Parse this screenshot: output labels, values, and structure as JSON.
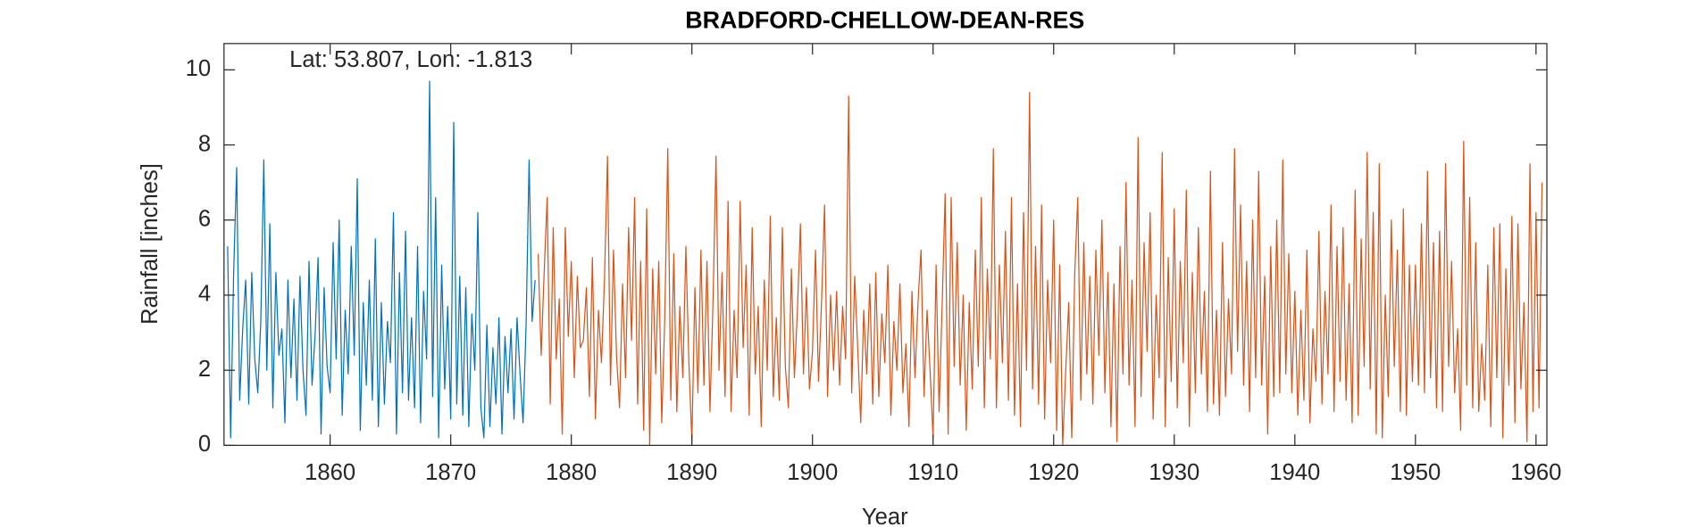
{
  "chart_data": {
    "type": "line",
    "title": "BRADFORD-CHELLOW-DEAN-RES",
    "annotation": "Lat: 53.807, Lon: -1.813",
    "x_label": "Year",
    "y_label": "Rainfall [inches]",
    "xlim": [
      1851.2,
      1960.9
    ],
    "xticks": [
      1860,
      1870,
      1880,
      1890,
      1900,
      1910,
      1920,
      1930,
      1940,
      1950,
      1960
    ],
    "ylim": [
      0,
      10.7
    ],
    "yticks": [
      0,
      2,
      4,
      6,
      8,
      10
    ],
    "grid": false,
    "series": [
      {
        "color": "#0072bd",
        "x": [
          1851.5,
          1851.75,
          1852,
          1852.25,
          1852.5,
          1852.75,
          1853,
          1853.25,
          1853.5,
          1853.75,
          1854,
          1854.25,
          1854.5,
          1854.75,
          1855,
          1855.25,
          1855.5,
          1855.75,
          1856,
          1856.25,
          1856.5,
          1856.75,
          1857,
          1857.25,
          1857.5,
          1857.75,
          1858,
          1858.25,
          1858.5,
          1858.75,
          1859,
          1859.25,
          1859.5,
          1859.75,
          1860,
          1860.25,
          1860.5,
          1860.75,
          1861,
          1861.25,
          1861.5,
          1861.75,
          1862,
          1862.25,
          1862.5,
          1862.75,
          1863,
          1863.25,
          1863.5,
          1863.75,
          1864,
          1864.25,
          1864.5,
          1864.75,
          1865,
          1865.25,
          1865.5,
          1865.75,
          1866,
          1866.25,
          1866.5,
          1866.75,
          1867,
          1867.25,
          1867.5,
          1867.75,
          1868,
          1868.25,
          1868.5,
          1868.75,
          1869,
          1869.25,
          1869.5,
          1869.75,
          1870,
          1870.25,
          1870.5,
          1870.75,
          1871,
          1871.25,
          1871.5,
          1871.75,
          1872,
          1872.25,
          1872.5,
          1872.75,
          1873,
          1873.25,
          1873.5,
          1873.75,
          1874,
          1874.25,
          1874.5,
          1874.75,
          1875,
          1875.25,
          1875.5,
          1875.75,
          1876,
          1876.25,
          1876.5,
          1876.75,
          1877
        ],
        "values": [
          5.3,
          0.2,
          4.6,
          7.4,
          1.2,
          3.1,
          4.4,
          1.1,
          4.6,
          2.3,
          1.4,
          3.3,
          7.6,
          2.0,
          5.9,
          1.0,
          4.6,
          2.4,
          3.1,
          0.6,
          4.4,
          1.8,
          3.9,
          1.2,
          4.5,
          2.0,
          0.8,
          4.9,
          1.6,
          2.9,
          5.0,
          0.3,
          4.2,
          2.1,
          1.4,
          5.4,
          2.3,
          6.0,
          0.8,
          3.6,
          1.9,
          5.3,
          2.4,
          7.1,
          0.4,
          3.8,
          1.6,
          4.4,
          1.2,
          5.5,
          0.5,
          3.8,
          1.1,
          3.3,
          2.2,
          6.2,
          0.3,
          4.6,
          1.4,
          5.7,
          1.2,
          3.4,
          1.0,
          5.3,
          0.6,
          4.1,
          2.3,
          9.7,
          1.3,
          6.6,
          0.2,
          4.8,
          1.5,
          3.7,
          0.7,
          8.6,
          1.1,
          4.5,
          0.8,
          4.2,
          0.5,
          3.5,
          2.0,
          6.2,
          1.0,
          0.2,
          3.2,
          0.5,
          2.6,
          1.1,
          3.4,
          0.3,
          2.9,
          1.4,
          3.1,
          0.7,
          3.4,
          1.9,
          0.6,
          3.2,
          7.6,
          3.3,
          4.4
        ]
      },
      {
        "color": "#d95319",
        "x": [
          1877.25,
          1877.5,
          1877.75,
          1878,
          1878.25,
          1878.5,
          1878.75,
          1879,
          1879.25,
          1879.5,
          1879.75,
          1880,
          1880.25,
          1880.5,
          1880.75,
          1881,
          1881.25,
          1881.5,
          1881.75,
          1882,
          1882.25,
          1882.5,
          1882.75,
          1883,
          1883.25,
          1883.5,
          1883.75,
          1884,
          1884.25,
          1884.5,
          1884.75,
          1885,
          1885.25,
          1885.5,
          1885.75,
          1886,
          1886.25,
          1886.5,
          1886.75,
          1887,
          1887.25,
          1887.5,
          1887.75,
          1888,
          1888.25,
          1888.5,
          1888.75,
          1889,
          1889.25,
          1889.5,
          1889.75,
          1890,
          1890.25,
          1890.5,
          1890.75,
          1891,
          1891.25,
          1891.5,
          1891.75,
          1892,
          1892.25,
          1892.5,
          1892.75,
          1893,
          1893.25,
          1893.5,
          1893.75,
          1894,
          1894.25,
          1894.5,
          1894.75,
          1895,
          1895.25,
          1895.5,
          1895.75,
          1896,
          1896.25,
          1896.5,
          1896.75,
          1897,
          1897.25,
          1897.5,
          1897.75,
          1898,
          1898.25,
          1898.5,
          1898.75,
          1899,
          1899.25,
          1899.5,
          1899.75,
          1900,
          1900.25,
          1900.5,
          1900.75,
          1901,
          1901.25,
          1901.5,
          1901.75,
          1902,
          1902.25,
          1902.5,
          1902.75,
          1903,
          1903.25,
          1903.5,
          1903.75,
          1904,
          1904.25,
          1904.5,
          1904.75,
          1905,
          1905.25,
          1905.5,
          1905.75,
          1906,
          1906.25,
          1906.5,
          1906.75,
          1907,
          1907.25,
          1907.5,
          1907.75,
          1908,
          1908.25,
          1908.5,
          1908.75,
          1909,
          1909.25,
          1909.5,
          1909.75,
          1910,
          1910.25,
          1910.5,
          1910.75,
          1911,
          1911.25,
          1911.5,
          1911.75,
          1912,
          1912.25,
          1912.5,
          1912.75,
          1913,
          1913.25,
          1913.5,
          1913.75,
          1914,
          1914.25,
          1914.5,
          1914.75,
          1915,
          1915.25,
          1915.5,
          1915.75,
          1916,
          1916.25,
          1916.5,
          1916.75,
          1917,
          1917.25,
          1917.5,
          1917.75,
          1918,
          1918.25,
          1918.5,
          1918.75,
          1919,
          1919.25,
          1919.5,
          1919.75,
          1920,
          1920.25,
          1920.5,
          1920.75,
          1921,
          1921.25,
          1921.5,
          1921.75,
          1922,
          1922.25,
          1922.5,
          1922.75,
          1923,
          1923.25,
          1923.5,
          1923.75,
          1924,
          1924.25,
          1924.5,
          1924.75,
          1925,
          1925.25,
          1925.5,
          1925.75,
          1926,
          1926.25,
          1926.5,
          1926.75,
          1927,
          1927.25,
          1927.5,
          1927.75,
          1928,
          1928.25,
          1928.5,
          1928.75,
          1929,
          1929.25,
          1929.5,
          1929.75,
          1930,
          1930.25,
          1930.5,
          1930.75,
          1931,
          1931.25,
          1931.5,
          1931.75,
          1932,
          1932.25,
          1932.5,
          1932.75,
          1933,
          1933.25,
          1933.5,
          1933.75,
          1934,
          1934.25,
          1934.5,
          1934.75,
          1935,
          1935.25,
          1935.5,
          1935.75,
          1936,
          1936.25,
          1936.5,
          1936.75,
          1937,
          1937.25,
          1937.5,
          1937.75,
          1938,
          1938.25,
          1938.5,
          1938.75,
          1939,
          1939.25,
          1939.5,
          1939.75,
          1940,
          1940.25,
          1940.5,
          1940.75,
          1941,
          1941.25,
          1941.5,
          1941.75,
          1942,
          1942.25,
          1942.5,
          1942.75,
          1943,
          1943.25,
          1943.5,
          1943.75,
          1944,
          1944.25,
          1944.5,
          1944.75,
          1945,
          1945.25,
          1945.5,
          1945.75,
          1946,
          1946.25,
          1946.5,
          1946.75,
          1947,
          1947.25,
          1947.5,
          1947.75,
          1948,
          1948.25,
          1948.5,
          1948.75,
          1949,
          1949.25,
          1949.5,
          1949.75,
          1950,
          1950.25,
          1950.5,
          1950.75,
          1951,
          1951.25,
          1951.5,
          1951.75,
          1952,
          1952.25,
          1952.5,
          1952.75,
          1953,
          1953.25,
          1953.5,
          1953.75,
          1954,
          1954.25,
          1954.5,
          1954.75,
          1955,
          1955.25,
          1955.5,
          1955.75,
          1956,
          1956.25,
          1956.5,
          1956.75,
          1957,
          1957.25,
          1957.5,
          1957.75,
          1958,
          1958.25,
          1958.5,
          1958.75,
          1959,
          1959.25,
          1959.5,
          1959.75,
          1960,
          1960.25,
          1960.5
        ],
        "values": [
          5.1,
          2.4,
          4.6,
          6.6,
          1.1,
          5.8,
          2.3,
          3.9,
          0.3,
          5.8,
          2.9,
          4.9,
          1.8,
          4.5,
          2.6,
          2.8,
          4.2,
          1.3,
          5.0,
          0.7,
          3.6,
          2.2,
          4.4,
          7.7,
          1.6,
          5.2,
          2.4,
          1.0,
          4.3,
          1.8,
          5.8,
          2.8,
          6.6,
          1.1,
          4.9,
          0.4,
          6.3,
          0.0,
          4.7,
          1.9,
          4.9,
          0.6,
          3.4,
          7.9,
          1.2,
          5.1,
          0.9,
          3.7,
          1.8,
          5.3,
          2.2,
          0.1,
          4.2,
          1.4,
          5.2,
          1.6,
          4.9,
          0.9,
          3.8,
          7.7,
          2.0,
          4.6,
          1.3,
          6.5,
          0.9,
          3.6,
          1.8,
          6.5,
          2.6,
          4.8,
          0.8,
          5.8,
          1.9,
          3.7,
          0.5,
          4.4,
          2.0,
          6.1,
          1.3,
          3.4,
          1.2,
          5.8,
          2.1,
          1.0,
          4.7,
          1.8,
          3.6,
          5.9,
          1.9,
          4.2,
          1.5,
          2.5,
          5.2,
          1.7,
          3.8,
          6.4,
          1.3,
          4.0,
          2.0,
          4.1,
          1.6,
          3.7,
          2.3,
          9.3,
          1.4,
          4.5,
          2.6,
          0.6,
          3.6,
          1.9,
          4.3,
          1.1,
          4.6,
          1.3,
          3.5,
          2.2,
          4.8,
          0.8,
          3.3,
          2.0,
          4.3,
          1.4,
          2.7,
          0.5,
          4.1,
          1.8,
          3.8,
          5.2,
          1.3,
          3.6,
          2.0,
          0.2,
          4.8,
          0.9,
          3.7,
          6.7,
          0.3,
          6.6,
          2.1,
          5.4,
          1.6,
          4.0,
          0.4,
          3.8,
          1.5,
          5.2,
          2.1,
          6.6,
          1.0,
          4.7,
          2.3,
          7.9,
          1.0,
          4.8,
          2.2,
          5.7,
          1.2,
          6.6,
          0.8,
          4.3,
          0.5,
          6.2,
          2.0,
          9.4,
          1.5,
          5.3,
          1.1,
          6.4,
          0.7,
          4.4,
          2.2,
          6.0,
          0.4,
          4.8,
          0.0,
          2.0,
          3.8,
          0.2,
          4.6,
          6.6,
          1.2,
          5.4,
          1.9,
          4.5,
          1.1,
          5.2,
          2.4,
          6.0,
          1.4,
          4.6,
          0.5,
          4.3,
          0.1,
          5.3,
          1.9,
          7.0,
          1.6,
          4.4,
          0.5,
          8.2,
          1.3,
          5.4,
          2.5,
          6.2,
          0.7,
          4.0,
          1.8,
          7.8,
          0.5,
          5.0,
          1.7,
          6.3,
          1.0,
          4.9,
          2.2,
          6.8,
          0.5,
          4.6,
          1.4,
          5.8,
          1.9,
          4.1,
          0.9,
          7.3,
          1.1,
          3.6,
          0.8,
          5.4,
          1.3,
          3.9,
          1.9,
          7.9,
          2.5,
          6.4,
          1.6,
          4.9,
          0.9,
          6.0,
          1.8,
          7.3,
          1.6,
          4.5,
          0.3,
          5.3,
          1.3,
          6.0,
          1.4,
          7.6,
          1.9,
          5.1,
          1.4,
          4.1,
          0.8,
          3.6,
          1.2,
          5.2,
          0.6,
          3.1,
          1.7,
          5.7,
          1.1,
          4.1,
          1.9,
          6.4,
          0.9,
          5.3,
          1.7,
          5.8,
          1.2,
          4.3,
          0.6,
          6.8,
          0.8,
          5.5,
          2.1,
          7.8,
          1.5,
          6.2,
          0.3,
          7.5,
          0.2,
          4.0,
          1.3,
          6.0,
          2.1,
          5.2,
          0.9,
          6.3,
          0.8,
          4.8,
          1.7,
          4.8,
          1.6,
          5.9,
          1.4,
          7.3,
          1.8,
          5.4,
          1.0,
          5.7,
          0.9,
          7.5,
          2.1,
          4.9,
          1.4,
          3.1,
          0.4,
          8.1,
          1.6,
          6.6,
          1.0,
          5.4,
          0.9,
          2.7,
          1.2,
          4.8,
          0.5,
          5.8,
          1.8,
          5.9,
          0.2,
          4.7,
          1.6,
          6.1,
          0.6,
          5.9,
          1.5,
          3.8,
          0.1,
          7.5,
          0.9,
          6.2,
          1.0,
          7.0
        ]
      }
    ]
  }
}
